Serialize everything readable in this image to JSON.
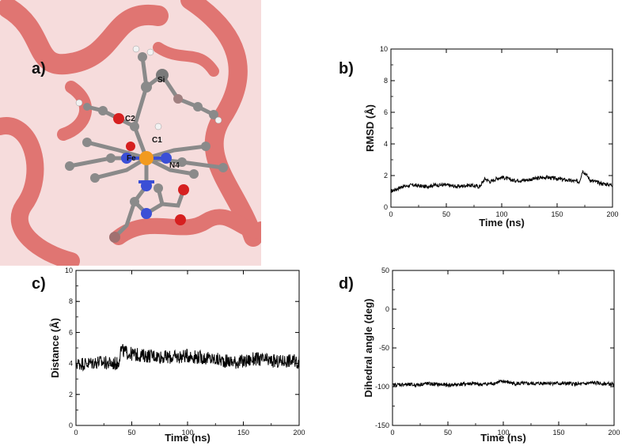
{
  "panel_labels": {
    "a": "a)",
    "b": "b)",
    "c": "c)",
    "d": "d)"
  },
  "molecule": {
    "atom_labels": [
      "Si",
      "C2",
      "C1",
      "Fe",
      "N4"
    ],
    "colors": {
      "protein": "#d9534f",
      "carbon": "#8a8a8a",
      "oxygen": "#d62020",
      "nitrogen": "#3b4fd6",
      "iron": "#f29a1f",
      "hydrogen": "#f2f2f2",
      "silicon": "#a08080"
    }
  },
  "chart_data": [
    {
      "id": "b",
      "type": "line",
      "xlabel": "Time (ns)",
      "ylabel": "RMSD (Å)",
      "xlim": [
        0,
        200
      ],
      "ylim": [
        0,
        10
      ],
      "xticks": [
        0,
        50,
        100,
        150,
        200
      ],
      "yticks": [
        0,
        2,
        4,
        6,
        8,
        10
      ],
      "legend": "none",
      "grid": false,
      "series": [
        {
          "x": [
            0,
            10,
            20,
            30,
            40,
            50,
            60,
            70,
            80,
            85,
            90,
            95,
            100,
            110,
            120,
            130,
            140,
            150,
            160,
            170,
            173,
            176,
            180,
            190,
            200
          ],
          "values": [
            1.0,
            1.3,
            1.4,
            1.3,
            1.4,
            1.4,
            1.3,
            1.4,
            1.3,
            1.8,
            1.6,
            1.8,
            1.9,
            1.7,
            1.7,
            1.8,
            1.9,
            1.8,
            1.7,
            1.6,
            2.3,
            2.1,
            1.7,
            1.5,
            1.4
          ]
        }
      ]
    },
    {
      "id": "c",
      "type": "line",
      "xlabel": "Time (ns)",
      "ylabel": "Distance (Å)",
      "xlim": [
        0,
        200
      ],
      "ylim": [
        0,
        10
      ],
      "xticks": [
        0,
        50,
        100,
        150,
        200
      ],
      "yticks": [
        0,
        2,
        4,
        6,
        8,
        10
      ],
      "legend": "none",
      "grid": false,
      "series": [
        {
          "x": [
            0,
            10,
            20,
            30,
            38,
            40,
            45,
            50,
            60,
            70,
            80,
            90,
            100,
            110,
            120,
            130,
            140,
            150,
            160,
            170,
            180,
            190,
            200
          ],
          "values": [
            4.0,
            4.0,
            4.1,
            4.0,
            4.0,
            4.9,
            4.7,
            4.6,
            4.5,
            4.5,
            4.4,
            4.4,
            4.5,
            4.4,
            4.3,
            4.2,
            4.1,
            4.1,
            4.3,
            4.2,
            4.1,
            4.2,
            4.1
          ]
        }
      ]
    },
    {
      "id": "d",
      "type": "line",
      "xlabel": "Time (ns)",
      "ylabel": "Dihedral angle (deg)",
      "xlim": [
        0,
        200
      ],
      "ylim": [
        -150,
        50
      ],
      "xticks": [
        0,
        50,
        100,
        150,
        200
      ],
      "yticks": [
        -150,
        -100,
        -50,
        0,
        50
      ],
      "legend": "none",
      "grid": false,
      "series": [
        {
          "x": [
            0,
            10,
            20,
            30,
            40,
            50,
            60,
            70,
            80,
            90,
            100,
            110,
            120,
            130,
            140,
            150,
            160,
            170,
            180,
            190,
            200
          ],
          "values": [
            -98,
            -97,
            -98,
            -96,
            -97,
            -98,
            -97,
            -96,
            -97,
            -96,
            -93,
            -96,
            -96,
            -96,
            -95,
            -96,
            -96,
            -97,
            -95,
            -96,
            -97
          ]
        }
      ]
    }
  ]
}
